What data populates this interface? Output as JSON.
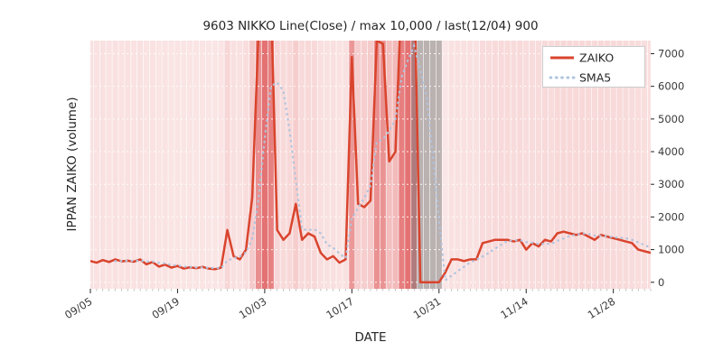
{
  "colors": {
    "zaiko": "#d9442d",
    "sma5": "#b0c4de",
    "band": "#d62728",
    "gray_band": "#7f7f7f",
    "grid": "#ffffff",
    "legend_border": "#cccccc"
  },
  "chart_data": {
    "type": "line",
    "title": "9603 NIKKO Line(Close) / max 10,000 / last(12/04) 900",
    "xlabel": "DATE",
    "ylabel": "IPPAN ZAIKO (volume)",
    "ylim": [
      -200,
      7400
    ],
    "yticks": [
      0,
      1000,
      2000,
      3000,
      4000,
      5000,
      6000,
      7000
    ],
    "x_tick_labels": [
      "09/05",
      "09/19",
      "10/03",
      "10/17",
      "10/31",
      "11/14",
      "11/28"
    ],
    "x_tick_indices": [
      0,
      14,
      28,
      42,
      56,
      70,
      84
    ],
    "start_date": "09/05",
    "end_date": "12/04",
    "last_value": 900,
    "band_scale": 10000,
    "gray_band_indices": [
      52,
      56
    ],
    "legend_position": "upper right",
    "grid": true,
    "series": [
      {
        "name": "ZAIKO",
        "style": "solid",
        "values": [
          650,
          600,
          680,
          620,
          700,
          640,
          660,
          630,
          700,
          550,
          620,
          480,
          540,
          450,
          500,
          420,
          460,
          430,
          470,
          420,
          400,
          450,
          1600,
          800,
          700,
          1000,
          2600,
          7600,
          10000,
          8800,
          1600,
          1300,
          1500,
          2400,
          1300,
          1500,
          1400,
          900,
          700,
          800,
          600,
          700,
          6900,
          2400,
          2300,
          2500,
          7400,
          7300,
          3700,
          4000,
          9000,
          10000,
          9500,
          0,
          0,
          0,
          0,
          300,
          700,
          700,
          650,
          700,
          700,
          1200,
          1250,
          1300,
          1300,
          1300,
          1250,
          1300,
          1000,
          1200,
          1100,
          1300,
          1250,
          1500,
          1550,
          1500,
          1450,
          1500,
          1400,
          1300,
          1450,
          1400,
          1350,
          1300,
          1250,
          1200,
          1000,
          950,
          900
        ]
      },
      {
        "name": "SMA5",
        "style": "dotted",
        "window": 5,
        "derived_from": "ZAIKO"
      }
    ]
  }
}
